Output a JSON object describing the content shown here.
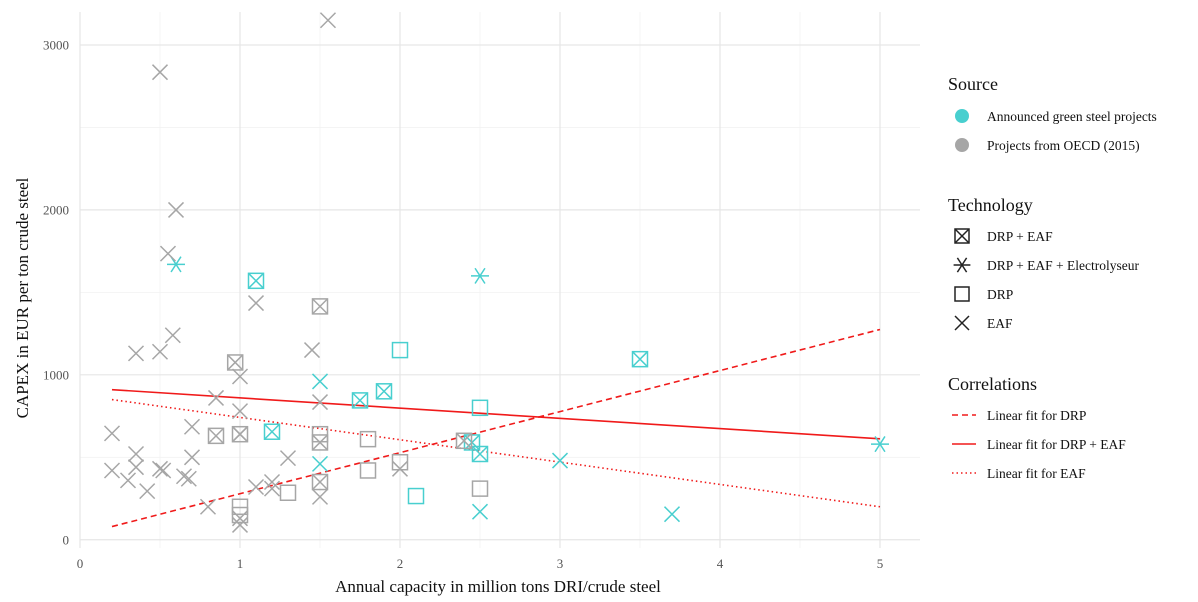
{
  "chart_data": {
    "type": "scatter",
    "xlabel": "Annual capacity in million tons DRI/crude steel",
    "ylabel": "CAPEX in EUR per ton crude steel",
    "xlim": [
      0,
      5.25
    ],
    "ylim": [
      -50,
      3200
    ],
    "x_ticks": [
      0,
      1,
      2,
      3,
      4,
      5
    ],
    "y_ticks": [
      0,
      1000,
      2000,
      3000
    ],
    "grid": true,
    "legend_position": "right",
    "colors": {
      "green": "#48CFCF",
      "oecd": "#A6A6A6",
      "fit": "#F01A1A"
    },
    "legend": {
      "source": {
        "title": "Source",
        "items": [
          {
            "label": "Announced green steel projects",
            "color": "#48CFCF"
          },
          {
            "label": "Projects from OECD (2015)",
            "color": "#A6A6A6"
          }
        ]
      },
      "technology": {
        "title": "Technology",
        "items": [
          {
            "label": "DRP + EAF",
            "shape": "boxx"
          },
          {
            "label": "DRP + EAF + Electrolyseur",
            "shape": "asterisk"
          },
          {
            "label": "DRP",
            "shape": "square"
          },
          {
            "label": "EAF",
            "shape": "cross"
          }
        ]
      },
      "correlations": {
        "title": "Correlations",
        "items": [
          {
            "label": "Linear fit for DRP",
            "dash": "dashed"
          },
          {
            "label": "Linear fit for DRP + EAF",
            "dash": "solid"
          },
          {
            "label": "Linear fit for EAF",
            "dash": "dotted"
          }
        ]
      }
    },
    "series": [
      {
        "name": "Announced green steel projects",
        "technology": "DRP + EAF",
        "shape": "boxx",
        "color": "#48CFCF",
        "points": [
          [
            1.1,
            1570
          ],
          [
            1.2,
            655
          ],
          [
            1.75,
            845
          ],
          [
            1.9,
            900
          ],
          [
            2.45,
            590
          ],
          [
            2.5,
            520
          ],
          [
            3.5,
            1095
          ]
        ]
      },
      {
        "name": "Announced green steel projects",
        "technology": "DRP + EAF + Electrolyseur",
        "shape": "asterisk",
        "color": "#48CFCF",
        "points": [
          [
            0.6,
            1670
          ],
          [
            2.5,
            1600
          ],
          [
            5.0,
            580
          ]
        ]
      },
      {
        "name": "Announced green steel projects",
        "technology": "DRP",
        "shape": "square",
        "color": "#48CFCF",
        "points": [
          [
            2.0,
            1150
          ],
          [
            2.1,
            265
          ],
          [
            2.5,
            800
          ]
        ]
      },
      {
        "name": "Announced green steel projects",
        "technology": "EAF",
        "shape": "cross",
        "color": "#48CFCF",
        "points": [
          [
            1.5,
            960
          ],
          [
            1.5,
            460
          ],
          [
            2.5,
            170
          ],
          [
            3.0,
            480
          ],
          [
            3.7,
            155
          ]
        ]
      },
      {
        "name": "Projects from OECD (2015)",
        "technology": "DRP + EAF",
        "shape": "boxx",
        "color": "#A6A6A6",
        "points": [
          [
            0.85,
            630
          ],
          [
            0.97,
            1075
          ],
          [
            1.0,
            640
          ],
          [
            1.5,
            1415
          ],
          [
            1.5,
            590
          ],
          [
            1.5,
            350
          ],
          [
            2.4,
            600
          ]
        ]
      },
      {
        "name": "Projects from OECD (2015)",
        "technology": "DRP",
        "shape": "square",
        "color": "#A6A6A6",
        "points": [
          [
            1.0,
            200
          ],
          [
            1.0,
            150
          ],
          [
            1.3,
            285
          ],
          [
            1.5,
            640
          ],
          [
            1.8,
            610
          ],
          [
            1.8,
            420
          ],
          [
            2.0,
            470
          ],
          [
            2.5,
            310
          ]
        ]
      },
      {
        "name": "Projects from OECD (2015)",
        "technology": "EAF",
        "shape": "cross",
        "color": "#A6A6A6",
        "points": [
          [
            0.2,
            645
          ],
          [
            0.2,
            420
          ],
          [
            0.3,
            360
          ],
          [
            0.35,
            1130
          ],
          [
            0.35,
            520
          ],
          [
            0.35,
            440
          ],
          [
            0.42,
            295
          ],
          [
            0.5,
            2835
          ],
          [
            0.5,
            1140
          ],
          [
            0.5,
            430
          ],
          [
            0.52,
            420
          ],
          [
            0.55,
            1735
          ],
          [
            0.58,
            1240
          ],
          [
            0.6,
            2000
          ],
          [
            0.65,
            385
          ],
          [
            0.68,
            370
          ],
          [
            0.7,
            685
          ],
          [
            0.7,
            500
          ],
          [
            0.8,
            200
          ],
          [
            0.85,
            860
          ],
          [
            1.0,
            990
          ],
          [
            1.0,
            780
          ],
          [
            1.0,
            640
          ],
          [
            1.0,
            130
          ],
          [
            1.0,
            90
          ],
          [
            1.1,
            1435
          ],
          [
            1.1,
            320
          ],
          [
            1.2,
            350
          ],
          [
            1.2,
            310
          ],
          [
            1.3,
            495
          ],
          [
            1.45,
            1150
          ],
          [
            1.5,
            835
          ],
          [
            1.5,
            260
          ],
          [
            1.55,
            3150
          ],
          [
            2.0,
            430
          ]
        ]
      }
    ],
    "fits": [
      {
        "name": "Linear fit for DRP",
        "dash": "dashed",
        "x": [
          0.2,
          5.0
        ],
        "y": [
          80,
          1275
        ]
      },
      {
        "name": "Linear fit for DRP + EAF",
        "dash": "solid",
        "x": [
          0.2,
          5.0
        ],
        "y": [
          910,
          612
        ]
      },
      {
        "name": "Linear fit for EAF",
        "dash": "dotted",
        "x": [
          0.2,
          5.0
        ],
        "y": [
          850,
          200
        ]
      }
    ]
  }
}
